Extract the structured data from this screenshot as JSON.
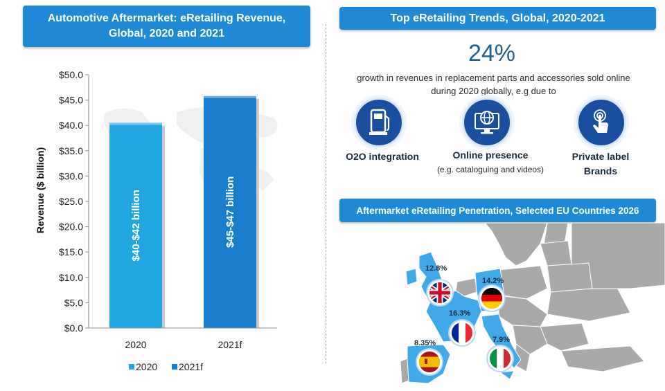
{
  "left_panel": {
    "title": "Automotive Aftermarket: eRetailing Revenue, Global, 2020 and 2021"
  },
  "chart_data": {
    "type": "bar",
    "title": "Automotive Aftermarket: eRetailing Revenue, Global, 2020 and 2021",
    "ylabel": "Revenue ($ billion)",
    "xlabel": "",
    "ylim": [
      0,
      50
    ],
    "yticks": [
      "$0.0",
      "$5.0",
      "$10.0",
      "$15.0",
      "$20.0",
      "$25.0",
      "$30.0",
      "$35.0",
      "$40.0",
      "$45.0",
      "$50.0"
    ],
    "categories": [
      "2020",
      "2021f"
    ],
    "values": [
      40.5,
      45.8
    ],
    "bar_labels": [
      "$40-$42 billion",
      "$45-$47 billion"
    ],
    "bar_colors": [
      "#22a7e3",
      "#1b7fcf"
    ],
    "legend": [
      "2020",
      "2021f"
    ],
    "legend_position": "bottom",
    "grid": false
  },
  "right_panel": {
    "title": "Top eRetailing Trends, Global, 2020-2021",
    "stat_value": "24%",
    "stat_text": "growth in revenues in replacement parts and accessories sold online during 2020 globally, e.g due to",
    "trends": [
      {
        "label": "O2O integration",
        "icon": "fuel-pump-icon"
      },
      {
        "label": "Online presence",
        "sublabel": "(e.g. cataloguing and videos)",
        "icon": "globe-monitor-icon"
      },
      {
        "label": "Private label Brands",
        "icon": "touch-hand-icon"
      }
    ]
  },
  "map_panel": {
    "title": "Aftermarket eRetailing Penetration, Selected EU Countries 2026",
    "countries": [
      {
        "name": "United Kingdom",
        "value": "12.8%",
        "icon": "uk-flag-icon"
      },
      {
        "name": "Germany",
        "value": "14.2%",
        "icon": "germany-flag-icon"
      },
      {
        "name": "France",
        "value": "16.3%",
        "icon": "france-flag-icon"
      },
      {
        "name": "Spain",
        "value": "8.35%",
        "icon": "spain-flag-icon"
      },
      {
        "name": "Italy",
        "value": "7.9%",
        "icon": "italy-flag-icon"
      }
    ],
    "colors": {
      "highlight": "#3fa9ea",
      "land": "#aaaaaa"
    }
  }
}
